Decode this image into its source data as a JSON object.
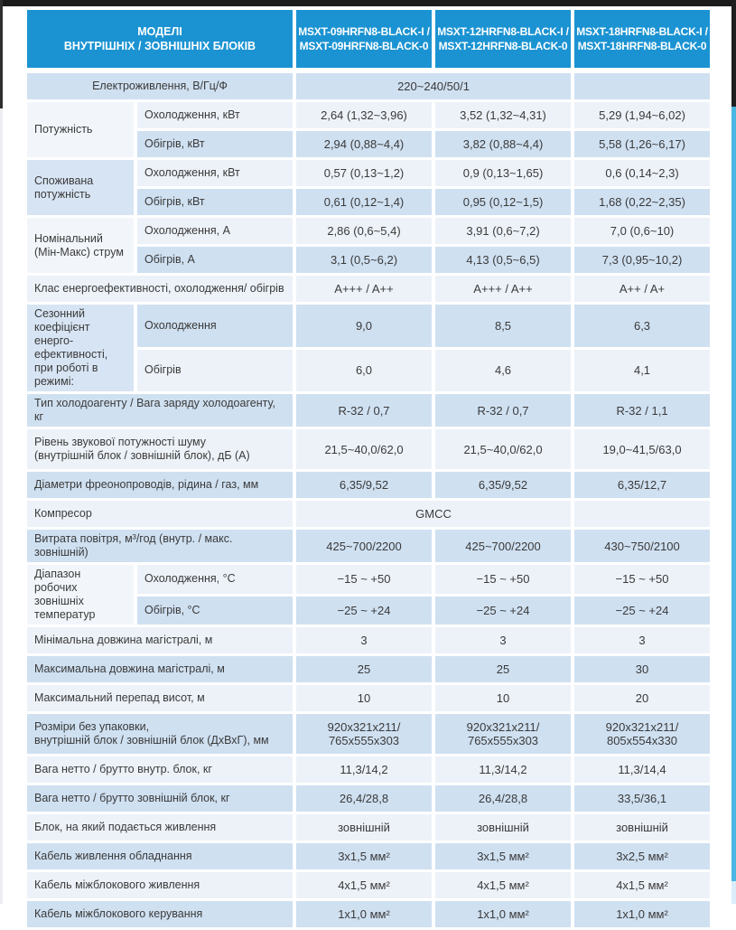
{
  "colors": {
    "header_blue": "#1b93d2",
    "stripe_blue": "#cfe0f1",
    "stripe_light": "#edf2f9",
    "top_bar": "#1b1b1b",
    "right_edge_accent": "#4ab6e2",
    "header_text": "#ffffff",
    "body_text": "#3a3a3a"
  },
  "table": {
    "header": {
      "models_title": "МОДЕЛІ\nВНУТРІШНІХ / ЗОВНІШНІХ БЛОКІВ",
      "models": [
        "MSXT-09HRFN8-BLACK-I /\nMSXT-09HRFN8-BLACK-0",
        "MSXT-12HRFN8-BLACK-I /\nMSXT-12HRFN8-BLACK-0",
        "MSXT-18HRFN8-BLACK-I /\nMSXT-18HRFN8-BLACK-0"
      ]
    },
    "rows": [
      {
        "label": "Електроживлення, В/Гц/Ф",
        "values": [
          "220~240/50/1"
        ],
        "merge_values": true,
        "center_label": true
      },
      {
        "group": "Потужність",
        "subs": [
          {
            "label": "Охолодження, кВт",
            "values": [
              "2,64 (1,32~3,96)",
              "3,52 (1,32~4,31)",
              "5,29 (1,94~6,02)"
            ]
          },
          {
            "label": "Обігрів, кВт",
            "values": [
              "2,94 (0,88~4,4)",
              "3,82 (0,88~4,4)",
              "5,58 (1,26~6,17)"
            ]
          }
        ]
      },
      {
        "group": "Споживана\nпотужність",
        "subs": [
          {
            "label": "Охолодження, кВт",
            "values": [
              "0,57 (0,13~1,2)",
              "0,9 (0,13~1,65)",
              "0,6 (0,14~2,3)"
            ]
          },
          {
            "label": "Обігрів, кВт",
            "values": [
              "0,61 (0,12~1,4)",
              "0,95 (0,12~1,5)",
              "1,68 (0,22~2,35)"
            ]
          }
        ]
      },
      {
        "group": "Номінальний\n(Мін-Макс) струм",
        "subs": [
          {
            "label": "Охолодження, А",
            "values": [
              "2,86 (0,6~5,4)",
              "3,91 (0,6~7,2)",
              "7,0 (0,6~10)"
            ]
          },
          {
            "label": "Обігрів, А",
            "values": [
              "3,1 (0,5~6,2)",
              "4,13 (0,5~6,5)",
              "7,3 (0,95~10,2)"
            ]
          }
        ]
      },
      {
        "label": "Клас енергоефективності, охолодження/ обігрів",
        "values": [
          "A+++ / A++",
          "A+++ / A++",
          "A++ / A+"
        ]
      },
      {
        "group": "Сезонний\nкоефіцієнт енерго-\nефективності,\nпри роботі в\nрежимі:",
        "subs": [
          {
            "label": "Охолодження",
            "values": [
              "9,0",
              "8,5",
              "6,3"
            ],
            "tall": true
          },
          {
            "label": "Обігрів",
            "values": [
              "6,0",
              "4,6",
              "4,1"
            ],
            "tall": true
          }
        ]
      },
      {
        "label": "Тип холодоагенту / Вага заряду холодоагенту, кг",
        "values": [
          "R-32 / 0,7",
          "R-32 / 0,7",
          "R-32 / 1,1"
        ]
      },
      {
        "label": "Рівень звукової потужності шуму\n(внутрішній блок / зовнішній блок), дБ (А)",
        "values": [
          "21,5~40,0/62,0",
          "21,5~40,0/62,0",
          "19,0~41,5/63,0"
        ],
        "tall": true
      },
      {
        "label": "Діаметри фреонопроводів, рідина / газ, мм",
        "values": [
          "6,35/9,52",
          "6,35/9,52",
          "6,35/12,7"
        ]
      },
      {
        "label": "Компресор",
        "values": [
          "GMCC"
        ],
        "merge_values": true
      },
      {
        "label": "Витрата повітря, м³/год (внутр. / макс. зовнішній)",
        "values": [
          "425~700/2200",
          "425~700/2200",
          "430~750/2100"
        ]
      },
      {
        "group": "Діапазон робочих\nзовнішніх\nтемператур",
        "subs": [
          {
            "label": "Охолодження, °С",
            "values": [
              "−15 ~ +50",
              "−15 ~ +50",
              "−15 ~ +50"
            ]
          },
          {
            "label": "Обігрів, °С",
            "values": [
              "−25 ~ +24",
              "−25 ~ +24",
              "−25 ~ +24"
            ]
          }
        ]
      },
      {
        "label": "Мінімальна довжина магістралі, м",
        "values": [
          "3",
          "3",
          "3"
        ]
      },
      {
        "label": "Максимальна довжина магістралі, м",
        "values": [
          "25",
          "25",
          "30"
        ]
      },
      {
        "label": "Максимальний перепад висот, м",
        "values": [
          "10",
          "10",
          "20"
        ]
      },
      {
        "label": "Розміри без упаковки,\nвнутрішній блок / зовнішній блок (ДхВхГ), мм",
        "values": [
          "920х321х211/\n765х555х303",
          "920х321х211/\n765х555х303",
          "920х321х211/\n805х554х330"
        ],
        "tall": true
      },
      {
        "label": "Вага нетто / брутто внутр. блок, кг",
        "values": [
          "11,3/14,2",
          "11,3/14,2",
          "11,3/14,4"
        ]
      },
      {
        "label": "Вага нетто / брутто зовнішній блок, кг",
        "values": [
          "26,4/28,8",
          "26,4/28,8",
          "33,5/36,1"
        ]
      },
      {
        "label": "Блок, на який подається живлення",
        "values": [
          "зовнішній",
          "зовнішній",
          "зовнішній"
        ]
      },
      {
        "label": "Кабель живлення обладнання",
        "values": [
          "3х1,5 мм²",
          "3х1,5 мм²",
          "3х2,5 мм²"
        ]
      },
      {
        "label": "Кабель міжблокового живлення",
        "values": [
          "4х1,5 мм²",
          "4х1,5 мм²",
          "4х1,5 мм²"
        ]
      },
      {
        "label": "Кабель міжблокового керування",
        "values": [
          "1х1,0 мм²",
          "1х1,0 мм²",
          "1х1,0 мм²"
        ]
      }
    ]
  }
}
